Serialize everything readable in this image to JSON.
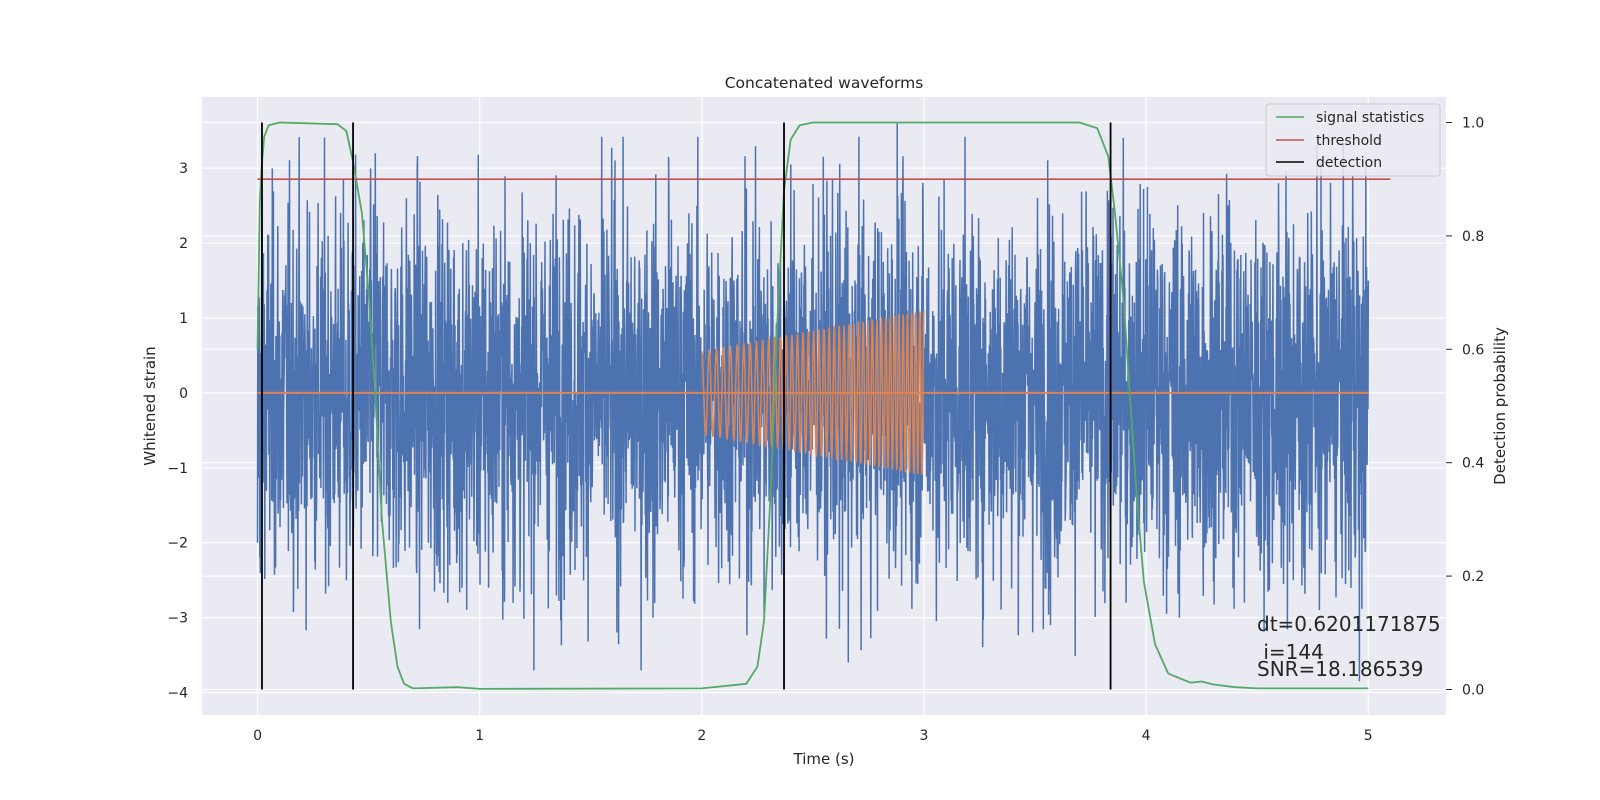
{
  "chart_data": {
    "type": "line",
    "title": "Concatenated waveforms",
    "xlabel": "Time (s)",
    "ylabel": "Whitened strain",
    "y2label": "Detection probability",
    "xlim": [
      -0.25,
      5.35
    ],
    "ylim": [
      -4.3,
      3.95
    ],
    "y2lim": [
      -0.045,
      1.045
    ],
    "xticks": [
      0,
      1,
      2,
      3,
      4,
      5
    ],
    "xtick_labels": [
      "0",
      "1",
      "2",
      "3",
      "4",
      "5"
    ],
    "yticks": [
      -4,
      -3,
      -2,
      -1,
      0,
      1,
      2,
      3
    ],
    "ytick_labels": [
      "−4",
      "−3",
      "−2",
      "−1",
      "0",
      "1",
      "2",
      "3"
    ],
    "y2ticks": [
      0.0,
      0.2,
      0.4,
      0.6,
      0.8,
      1.0
    ],
    "y2tick_labels": [
      "0.0",
      "0.2",
      "0.4",
      "0.6",
      "0.8",
      "1.0"
    ],
    "grid": true,
    "legend_position": "top-right",
    "legend": [
      {
        "label": "signal statistics",
        "color": "#55a868"
      },
      {
        "label": "threshold",
        "color": "#c44e52"
      },
      {
        "label": "detection",
        "color": "#000000"
      }
    ],
    "series": [
      {
        "kind": "noise",
        "color": "#4c72b0",
        "x_range": [
          0.0,
          5.0
        ],
        "typical_amplitude": 2.0,
        "max": 3.6,
        "min": -3.9,
        "trace_samples": [
          [
            0.0,
            1.9
          ],
          [
            0.0,
            -2.0
          ],
          [
            0.01,
            -2.2
          ],
          [
            0.02,
            2.6
          ],
          [
            0.4,
            -2.5
          ],
          [
            0.53,
            3.2
          ],
          [
            0.92,
            -2.6
          ],
          [
            1.04,
            -2.6
          ],
          [
            1.78,
            -3.0
          ],
          [
            1.85,
            3.15
          ],
          [
            2.28,
            -2.95
          ],
          [
            2.4,
            3.05
          ],
          [
            2.62,
            -3.15
          ],
          [
            2.66,
            -3.6
          ],
          [
            2.88,
            3.6
          ],
          [
            3.57,
            -3.1
          ],
          [
            3.91,
            -2.8
          ],
          [
            4.15,
            -3.0
          ],
          [
            4.78,
            -2.9
          ],
          [
            4.93,
            2.9
          ],
          [
            4.96,
            -3.85
          ],
          [
            5.0,
            1.5
          ]
        ]
      },
      {
        "kind": "chirp",
        "color": "#dd8452",
        "x_range": [
          2.0,
          3.0
        ],
        "amplitude_start": 0.55,
        "amplitude_end": 1.1,
        "cycles": 42,
        "baseline": 0.0,
        "baseline_range": [
          0.0,
          5.0
        ]
      },
      {
        "name": "signal statistics",
        "kind": "probability",
        "axis": "right",
        "color": "#55a868",
        "points": [
          [
            0.0,
            0.6
          ],
          [
            0.01,
            0.86
          ],
          [
            0.02,
            0.93
          ],
          [
            0.03,
            0.975
          ],
          [
            0.05,
            0.995
          ],
          [
            0.1,
            1.0
          ],
          [
            0.36,
            0.997
          ],
          [
            0.4,
            0.985
          ],
          [
            0.43,
            0.93
          ],
          [
            0.47,
            0.84
          ],
          [
            0.5,
            0.7
          ],
          [
            0.53,
            0.52
          ],
          [
            0.56,
            0.3
          ],
          [
            0.6,
            0.12
          ],
          [
            0.63,
            0.04
          ],
          [
            0.66,
            0.01
          ],
          [
            0.7,
            0.002
          ],
          [
            0.9,
            0.004
          ],
          [
            1.0,
            0.001
          ],
          [
            2.0,
            0.002
          ],
          [
            2.2,
            0.01
          ],
          [
            2.25,
            0.04
          ],
          [
            2.28,
            0.12
          ],
          [
            2.31,
            0.35
          ],
          [
            2.34,
            0.65
          ],
          [
            2.37,
            0.88
          ],
          [
            2.4,
            0.97
          ],
          [
            2.44,
            0.995
          ],
          [
            2.5,
            1.0
          ],
          [
            3.7,
            1.0
          ],
          [
            3.78,
            0.99
          ],
          [
            3.83,
            0.94
          ],
          [
            3.86,
            0.84
          ],
          [
            3.9,
            0.68
          ],
          [
            3.93,
            0.5
          ],
          [
            3.96,
            0.33
          ],
          [
            3.99,
            0.19
          ],
          [
            4.04,
            0.08
          ],
          [
            4.1,
            0.028
          ],
          [
            4.2,
            0.012
          ],
          [
            4.25,
            0.014
          ],
          [
            4.3,
            0.009
          ],
          [
            4.4,
            0.004
          ],
          [
            4.5,
            0.002
          ],
          [
            5.0,
            0.002
          ]
        ]
      },
      {
        "name": "threshold",
        "kind": "hline",
        "axis": "right",
        "color": "#c44e52",
        "value": 0.9,
        "x_range": [
          0.0,
          5.1
        ]
      },
      {
        "name": "detection",
        "kind": "vlines",
        "color": "#000000",
        "x": [
          0.02,
          0.43,
          2.37,
          3.84
        ],
        "y_range": [
          0.0,
          1.0
        ]
      }
    ],
    "annotations": [
      {
        "text": "dt=0.6201171875",
        "x": 4.5,
        "y": 0.1
      },
      {
        "text": " i=144",
        "x": 4.5,
        "y": 0.05
      },
      {
        "text": "SNR=18.186539",
        "x": 4.5,
        "y": 0.02
      }
    ]
  }
}
